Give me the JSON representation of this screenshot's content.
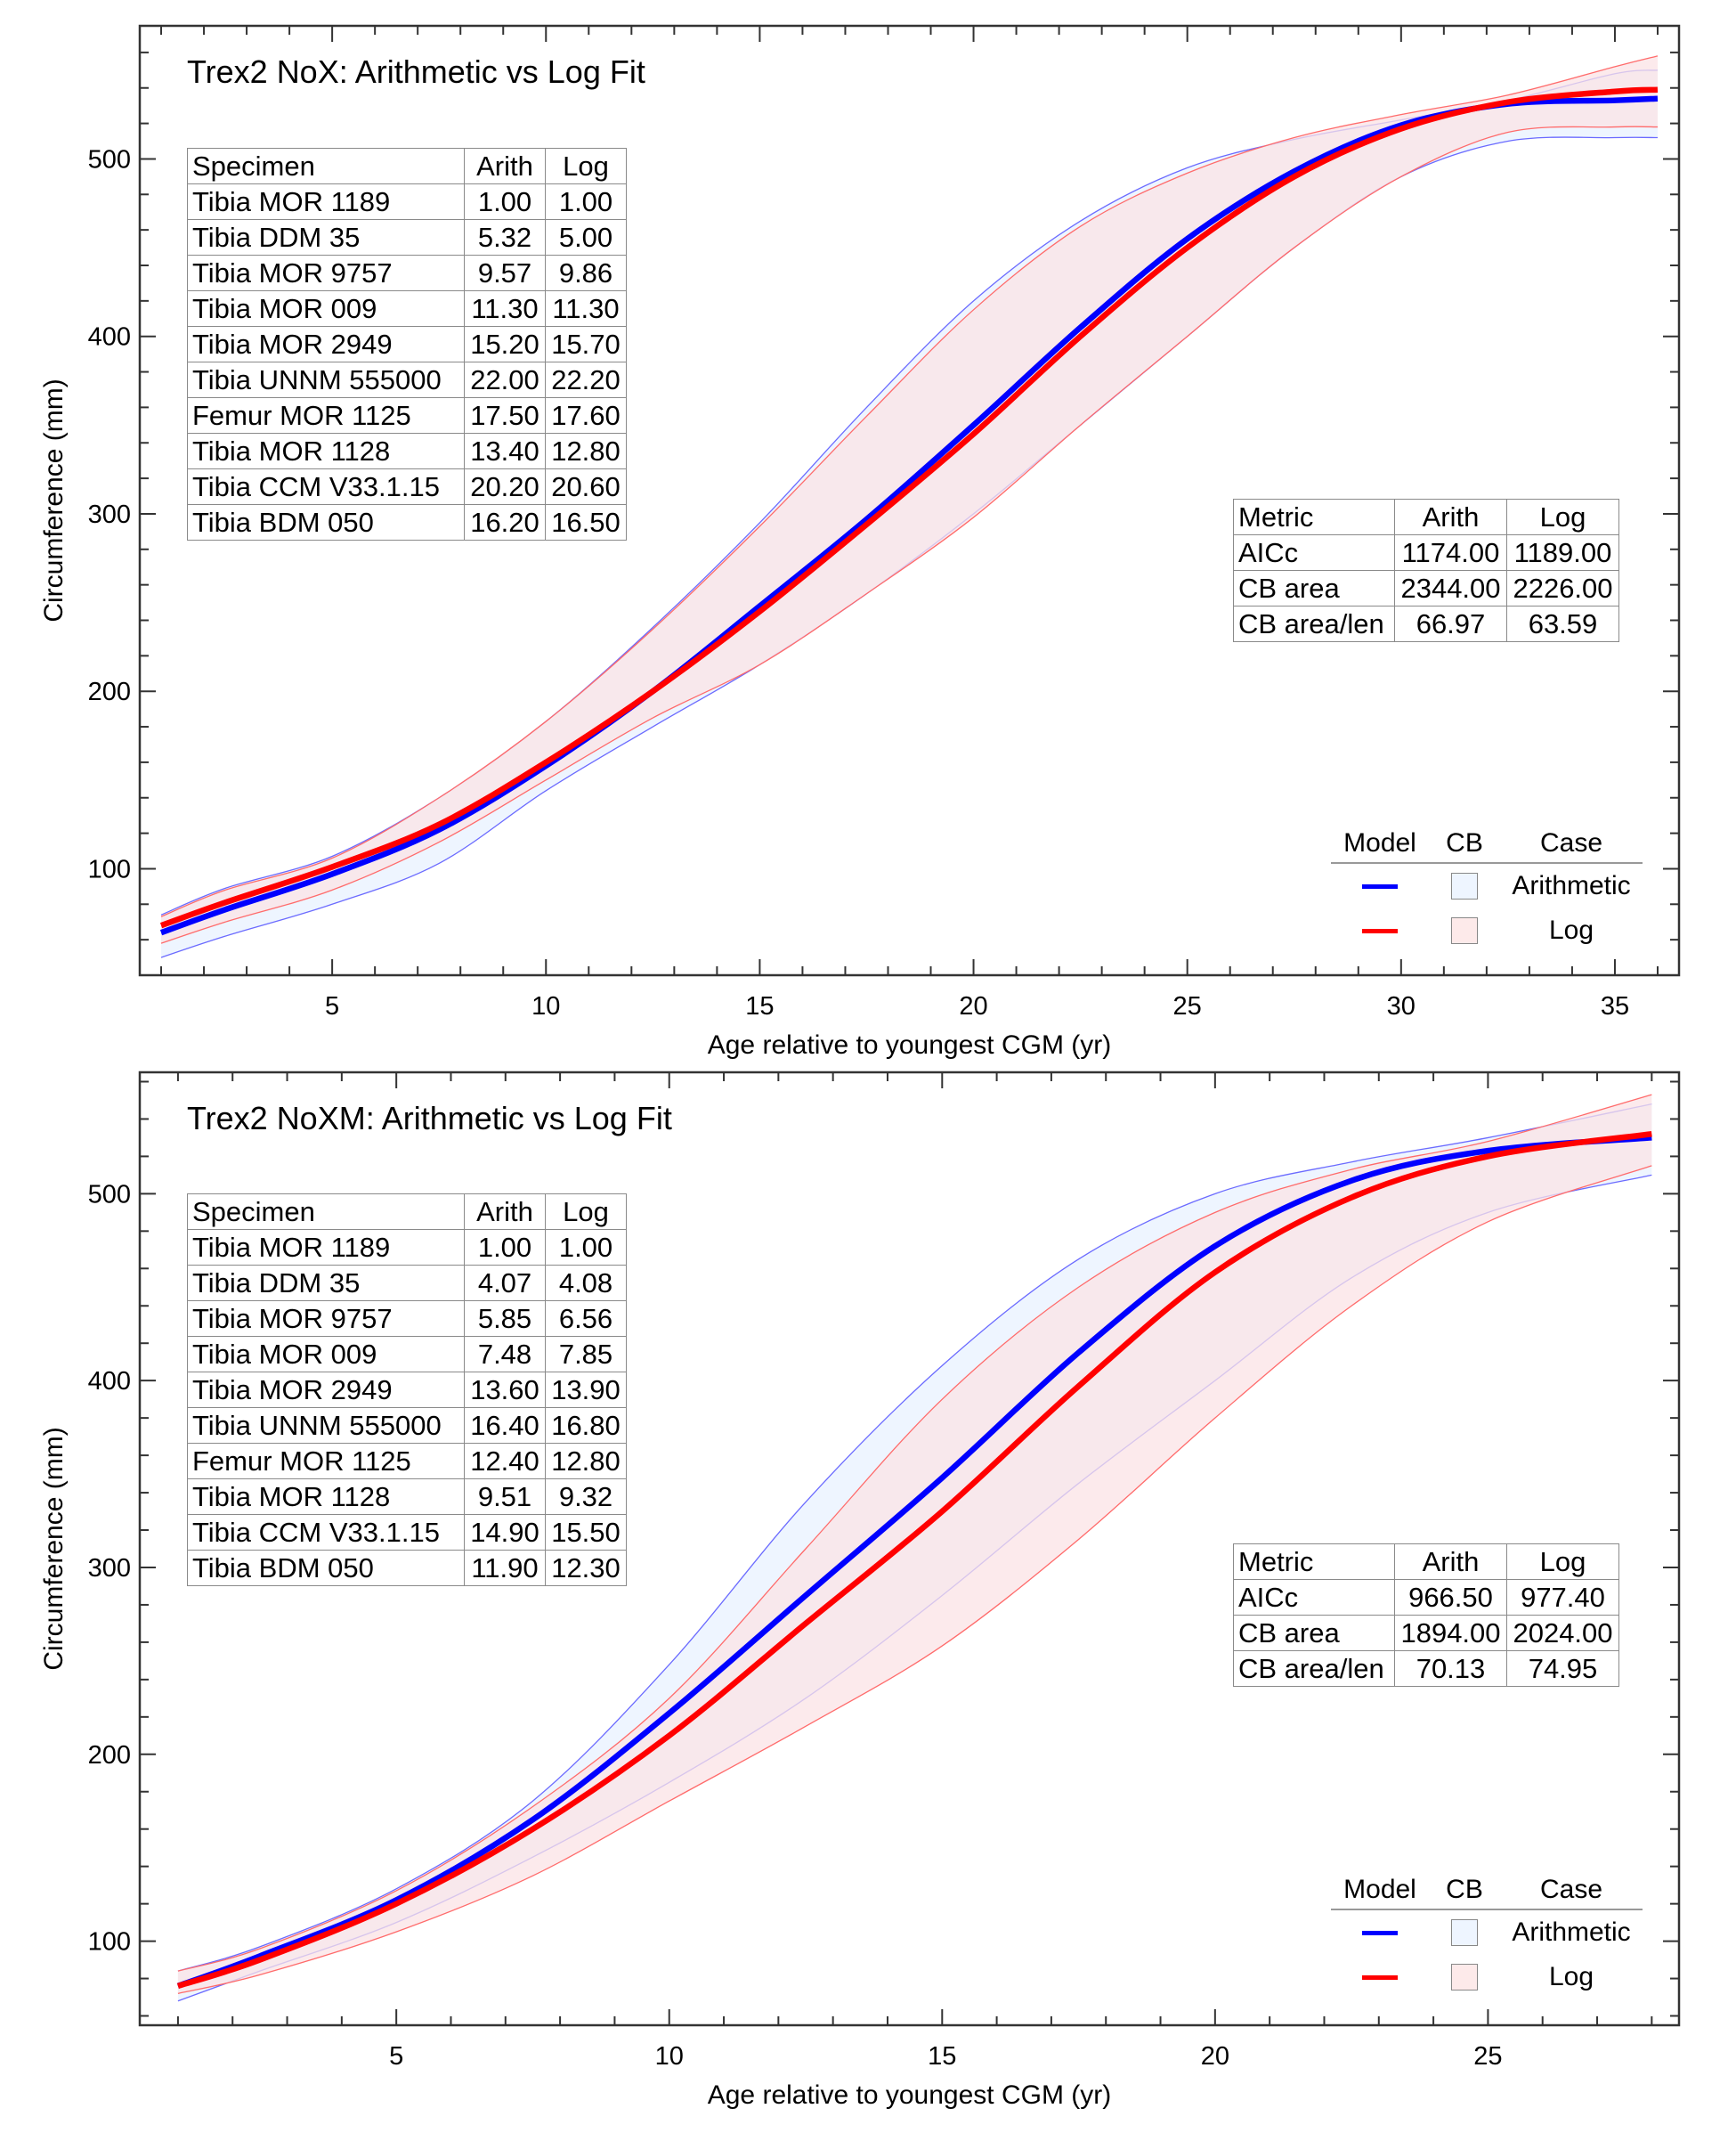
{
  "colors": {
    "arith_line": "#0000ff",
    "log_line": "#ff0000",
    "arith_cb_fill": "#eef5ff",
    "log_cb_fill": "#fbe3e6",
    "arith_cb_edge": "#6b6bff",
    "log_cb_edge": "#ff6b6b"
  },
  "chart_data": [
    {
      "type": "line",
      "title": "Trex2 NoX: Arithmetic vs Log Fit",
      "xlabel": "Age relative to youngest CGM (yr)",
      "ylabel": "Circumference (mm)",
      "xlim": [
        0.5,
        36.5
      ],
      "ylim": [
        40,
        575
      ],
      "xticks": [
        5,
        10,
        15,
        20,
        25,
        30,
        35
      ],
      "yticks": [
        100,
        200,
        300,
        400,
        500
      ],
      "x_minor_step": 1,
      "y_minor_step": 20,
      "grid": false,
      "x": [
        1,
        2.5,
        5,
        7.5,
        10,
        12.5,
        15,
        17.5,
        20,
        22.5,
        25,
        27.5,
        30,
        32.5,
        35,
        36
      ],
      "series": [
        {
          "name": "Arithmetic",
          "kind": "fit",
          "values": [
            64,
            77,
            97,
            122,
            158,
            200,
            248,
            297,
            350,
            405,
            455,
            493,
            519,
            531,
            533,
            534
          ]
        },
        {
          "name": "Log",
          "kind": "fit",
          "values": [
            68,
            81,
            101,
            125,
            160,
            200,
            245,
            294,
            345,
            400,
            450,
            490,
            517,
            532,
            538,
            539
          ]
        }
      ],
      "bands": [
        {
          "name": "Arithmetic CB",
          "lower": [
            50,
            62,
            80,
            103,
            144,
            180,
            215,
            255,
            300,
            350,
            400,
            450,
            490,
            510,
            512,
            512
          ],
          "upper": [
            74,
            89,
            107,
            140,
            183,
            236,
            295,
            360,
            420,
            465,
            495,
            511,
            522,
            533,
            548,
            550
          ]
        },
        {
          "name": "Log CB",
          "lower": [
            58,
            70,
            88,
            115,
            150,
            185,
            215,
            255,
            298,
            350,
            400,
            450,
            490,
            515,
            518,
            518
          ],
          "upper": [
            73,
            88,
            106,
            140,
            183,
            235,
            293,
            355,
            415,
            462,
            492,
            512,
            525,
            536,
            552,
            558
          ]
        }
      ],
      "specimen_table": {
        "headers": [
          "Specimen",
          "Arith",
          "Log"
        ],
        "rows": [
          [
            "Tibia MOR 1189",
            "1.00",
            "1.00"
          ],
          [
            "Tibia DDM 35",
            "5.32",
            "5.00"
          ],
          [
            "Tibia MOR 9757",
            "9.57",
            "9.86"
          ],
          [
            "Tibia MOR 009",
            "11.30",
            "11.30"
          ],
          [
            "Tibia MOR 2949",
            "15.20",
            "15.70"
          ],
          [
            "Tibia UNNM 555000",
            "22.00",
            "22.20"
          ],
          [
            "Femur MOR 1125",
            "17.50",
            "17.60"
          ],
          [
            "Tibia MOR 1128",
            "13.40",
            "12.80"
          ],
          [
            "Tibia CCM V33.1.15",
            "20.20",
            "20.60"
          ],
          [
            "Tibia BDM 050",
            "16.20",
            "16.50"
          ]
        ]
      },
      "metric_table": {
        "headers": [
          "Metric",
          "Arith",
          "Log"
        ],
        "rows": [
          [
            "AICc",
            "1174.00",
            "1189.00"
          ],
          [
            "CB area",
            "2344.00",
            "2226.00"
          ],
          [
            "CB area/len",
            "66.97",
            "63.59"
          ]
        ]
      },
      "legend": {
        "placement": "bottom-right",
        "headers": [
          "Model",
          "CB",
          "Case"
        ],
        "entries": [
          "Arithmetic",
          "Log"
        ]
      }
    },
    {
      "type": "line",
      "title": "Trex2 NoXM: Arithmetic vs Log Fit",
      "xlabel": "Age relative to youngest CGM (yr)",
      "ylabel": "Circumference (mm)",
      "xlim": [
        0.3,
        28.5
      ],
      "ylim": [
        55,
        565
      ],
      "xticks": [
        5,
        10,
        15,
        20,
        25
      ],
      "yticks": [
        100,
        200,
        300,
        400,
        500
      ],
      "x_minor_step": 1,
      "y_minor_step": 20,
      "grid": false,
      "x": [
        1,
        2.5,
        5,
        7.5,
        10,
        12.5,
        15,
        17.5,
        20,
        22.5,
        25,
        28
      ],
      "series": [
        {
          "name": "Arithmetic",
          "kind": "fit",
          "values": [
            76,
            92,
            122,
            165,
            222,
            285,
            348,
            415,
            472,
            507,
            523,
            530
          ]
        },
        {
          "name": "Log",
          "kind": "fit",
          "values": [
            76,
            90,
            120,
            160,
            210,
            270,
            330,
            397,
            458,
            498,
            520,
            532
          ]
        }
      ],
      "bands": [
        {
          "name": "Arithmetic CB",
          "lower": [
            68,
            84,
            110,
            145,
            185,
            230,
            285,
            345,
            400,
            455,
            490,
            510
          ],
          "upper": [
            84,
            97,
            128,
            175,
            248,
            335,
            408,
            465,
            500,
            517,
            530,
            548
          ]
        },
        {
          "name": "Log CB",
          "lower": [
            72,
            82,
            105,
            135,
            175,
            215,
            258,
            315,
            380,
            440,
            485,
            515
          ],
          "upper": [
            84,
            96,
            127,
            172,
            230,
            310,
            390,
            450,
            490,
            513,
            528,
            553
          ]
        }
      ],
      "specimen_table": {
        "headers": [
          "Specimen",
          "Arith",
          "Log"
        ],
        "rows": [
          [
            "Tibia MOR 1189",
            "1.00",
            "1.00"
          ],
          [
            "Tibia DDM 35",
            "4.07",
            "4.08"
          ],
          [
            "Tibia MOR 9757",
            "5.85",
            "6.56"
          ],
          [
            "Tibia MOR 009",
            "7.48",
            "7.85"
          ],
          [
            "Tibia MOR 2949",
            "13.60",
            "13.90"
          ],
          [
            "Tibia UNNM 555000",
            "16.40",
            "16.80"
          ],
          [
            "Femur MOR 1125",
            "12.40",
            "12.80"
          ],
          [
            "Tibia MOR 1128",
            "9.51",
            "9.32"
          ],
          [
            "Tibia CCM V33.1.15",
            "14.90",
            "15.50"
          ],
          [
            "Tibia BDM 050",
            "11.90",
            "12.30"
          ]
        ]
      },
      "metric_table": {
        "headers": [
          "Metric",
          "Arith",
          "Log"
        ],
        "rows": [
          [
            "AICc",
            "966.50",
            "977.40"
          ],
          [
            "CB area",
            "1894.00",
            "2024.00"
          ],
          [
            "CB area/len",
            "70.13",
            "74.95"
          ]
        ]
      },
      "legend": {
        "placement": "bottom-right",
        "headers": [
          "Model",
          "CB",
          "Case"
        ],
        "entries": [
          "Arithmetic",
          "Log"
        ]
      }
    }
  ]
}
